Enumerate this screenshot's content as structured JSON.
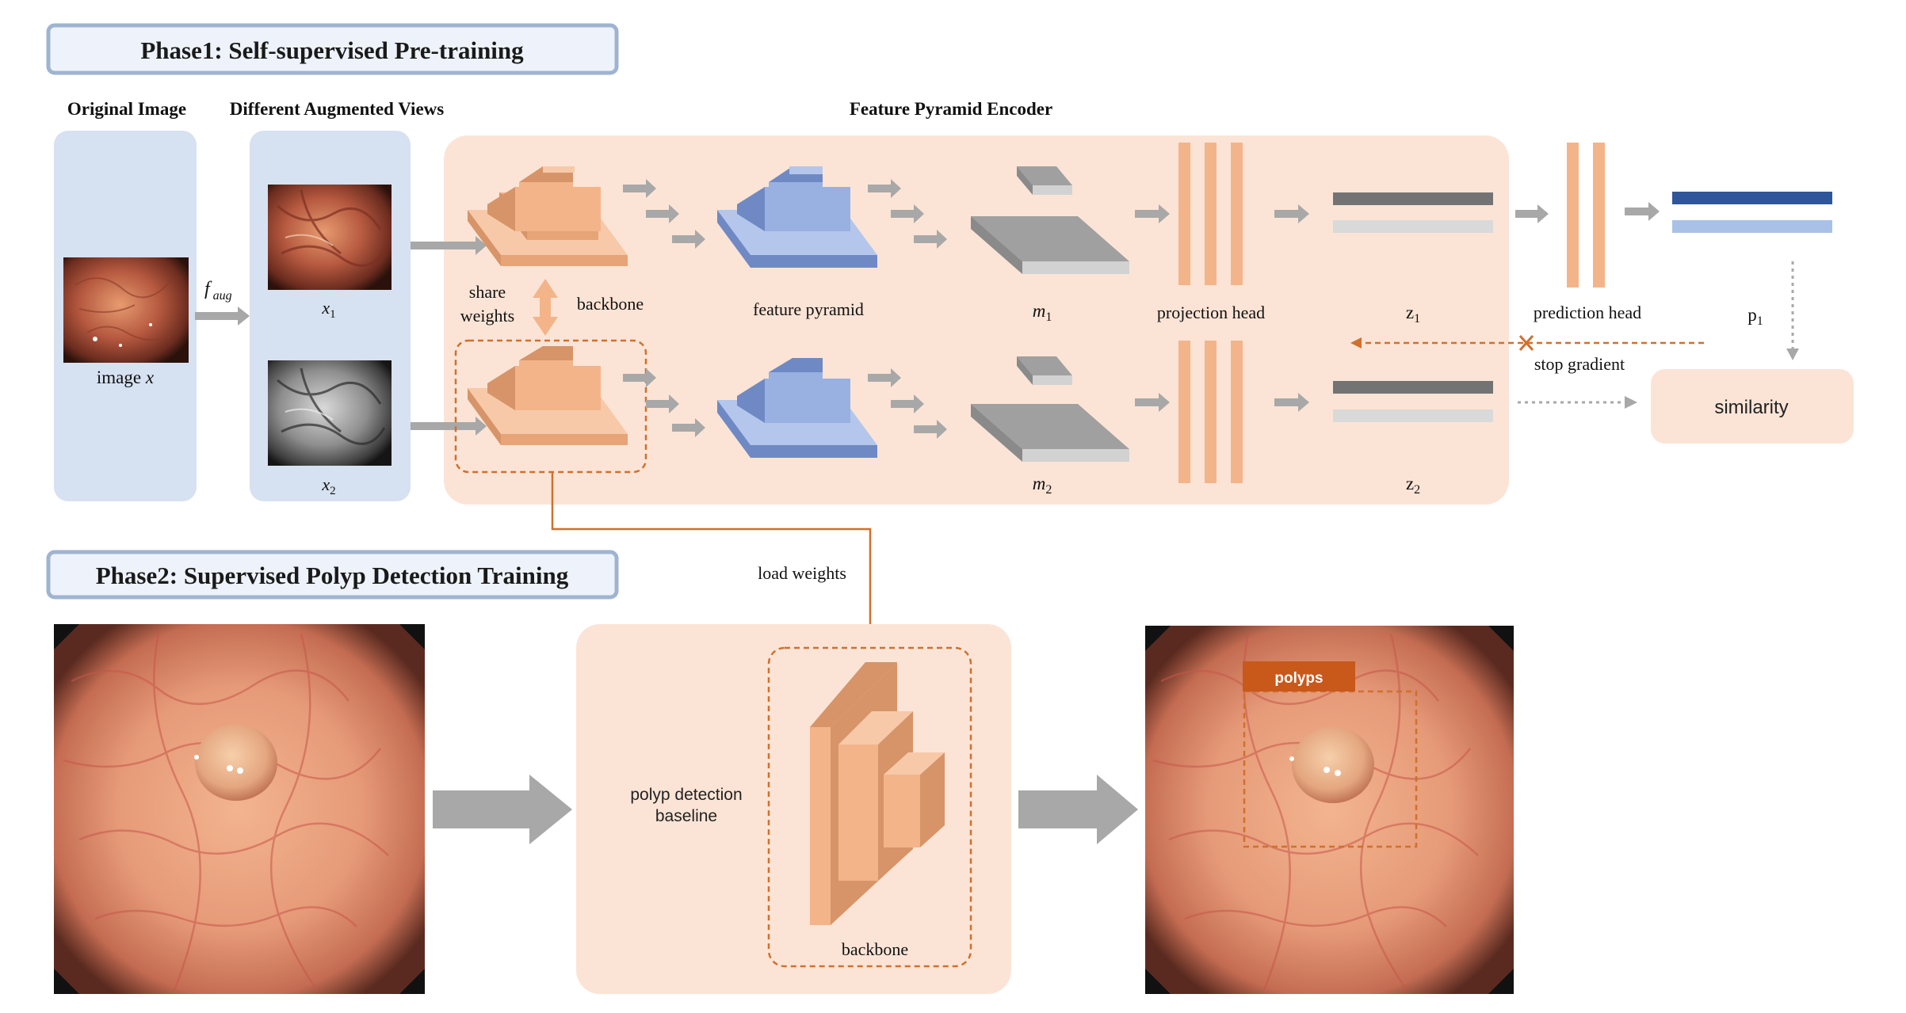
{
  "colors": {
    "peach_bg": "#fbe4d6",
    "blue_bg": "#d6e1f1",
    "header_bg": "#eef3fb",
    "header_border": "#9fb4d0",
    "orange_light": "#f3b48a",
    "orange_top": "#f7c9a8",
    "orange_side": "#d69468",
    "blue_light": "#98b1e0",
    "blue_top": "#b4c6ec",
    "blue_side": "#6f89c4",
    "gray_arrow": "#a8a8a8",
    "dashed_orange": "#d0702e",
    "polyps_label": "#c8591b",
    "z_dark": "#737373",
    "z_light": "#d9d9d9",
    "p_dark": "#2f569b",
    "p_light": "#a9c1e6"
  },
  "phase1": {
    "title": "Phase1: Self-supervised  Pre-training",
    "original_image_title": "Original Image",
    "augmented_title": "Different Augmented Views",
    "encoder_title": "Feature Pyramid Encoder",
    "image_label_prefix": "image ",
    "image_label_var": "x",
    "faug_main": "f",
    "faug_sub": "aug",
    "x1_main": "x",
    "x1_sub": "1",
    "x2_main": "x",
    "x2_sub": "2",
    "share": "share",
    "weights": "weights",
    "backbone": "backbone",
    "feature_pyramid": "feature pyramid",
    "m1_main": "m",
    "m1_sub": "1",
    "m2_main": "m",
    "m2_sub": "2",
    "projection_head": "projection head",
    "z1_main": "z",
    "z1_sub": "1",
    "z2_main": "z",
    "z2_sub": "2",
    "prediction_head": "prediction head",
    "p1_main": "p",
    "p1_sub": "1",
    "stop_gradient": "stop gradient",
    "similarity": "similarity"
  },
  "phase2": {
    "title": "Phase2: Supervised Polyp Detection Training",
    "load_weights": "load weights",
    "baseline_line1": "polyp detection",
    "baseline_line2": "baseline",
    "backbone": "backbone",
    "polyps": "polyps"
  }
}
